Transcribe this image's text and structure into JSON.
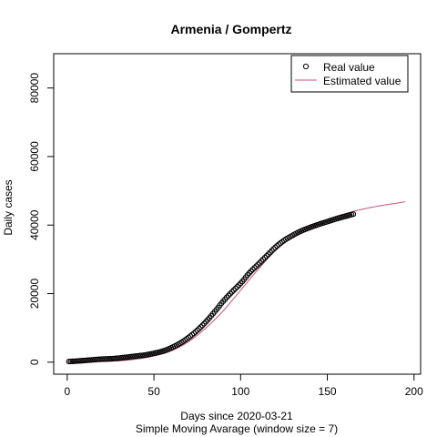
{
  "chart_data": {
    "type": "scatter",
    "title": "Armenia / Gompertz",
    "xlabel": "Days since 2020-03-21",
    "subtitle": "Simple Moving Avarage (window size = 7)",
    "ylabel": "Daily cases",
    "xlim": [
      -7.8,
      203.8
    ],
    "ylim": [
      -3500,
      90000
    ],
    "x_ticks": [
      0,
      50,
      100,
      150,
      200
    ],
    "y_ticks": [
      0,
      20000,
      40000,
      60000,
      80000
    ],
    "x_tick_labels": [
      "0",
      "50",
      "100",
      "150",
      "200"
    ],
    "y_tick_labels": [
      "0",
      "20000",
      "40000",
      "60000",
      "80000"
    ],
    "grid": false,
    "legend_position": "top-right",
    "series": [
      {
        "name": "Real value",
        "kind": "points",
        "color": "#000000",
        "x": [
          1,
          5,
          10,
          15,
          20,
          25,
          30,
          35,
          40,
          45,
          50,
          55,
          60,
          65,
          70,
          75,
          80,
          85,
          90,
          95,
          100,
          105,
          110,
          115,
          120,
          125,
          130,
          135,
          140,
          145,
          150,
          155,
          160,
          165
        ],
        "y": [
          200,
          300,
          500,
          700,
          900,
          1000,
          1200,
          1500,
          1800,
          2100,
          2600,
          3200,
          4200,
          5500,
          7200,
          9300,
          11800,
          14700,
          17800,
          20500,
          23000,
          26000,
          28500,
          31000,
          33500,
          35500,
          37000,
          38300,
          39300,
          40200,
          41000,
          41800,
          42500,
          43200
        ]
      },
      {
        "name": "Estimated value",
        "kind": "line",
        "color": "#c8507a",
        "x": [
          0,
          10,
          20,
          30,
          40,
          50,
          60,
          70,
          80,
          90,
          100,
          110,
          120,
          130,
          140,
          150,
          160,
          170,
          180,
          190,
          195
        ],
        "y": [
          30,
          80,
          180,
          400,
          900,
          1800,
          3300,
          6000,
          10000,
          15000,
          21000,
          27000,
          32500,
          36500,
          39500,
          41700,
          43300,
          44600,
          45600,
          46400,
          46800
        ]
      }
    ]
  }
}
